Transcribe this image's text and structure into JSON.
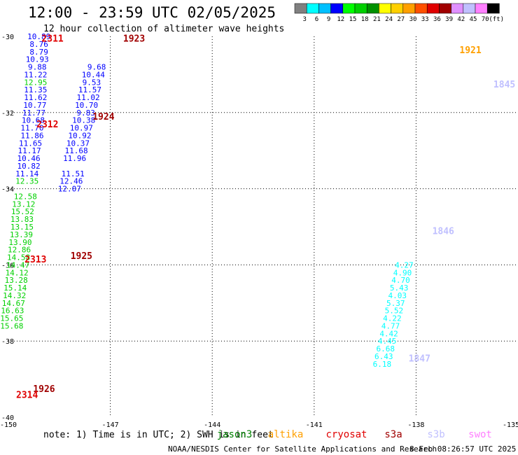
{
  "header": {
    "title": "12:00 - 23:59 UTC 02/05/2025",
    "subtitle": "12 hour collection of altimeter wave heights",
    "unit": "(ft)"
  },
  "legend_scale": {
    "colors": [
      "#808080",
      "#00ffff",
      "#00c0ff",
      "#0000ff",
      "#00ff00",
      "#00d000",
      "#009000",
      "#ffff00",
      "#ffd000",
      "#ffa000",
      "#ff5000",
      "#e00000",
      "#a00000",
      "#e090ff",
      "#c0c0ff",
      "#ff80ff",
      "#000000"
    ],
    "labels": [
      "3",
      "6",
      "9",
      "12",
      "15",
      "18",
      "21",
      "24",
      "27",
      "30",
      "33",
      "36",
      "39",
      "42",
      "45",
      "70"
    ]
  },
  "footer": {
    "note": "note: 1) Time is in UTC; 2) SWH is in feet",
    "credit": "NOAA/NESDIS Center for Satellite Applications and Research",
    "timestamp": "8 Feb 08:26:57 UTC 2025",
    "satellites": [
      {
        "name": "jason3",
        "color": "#008000"
      },
      {
        "name": "altika",
        "color": "#ffa000"
      },
      {
        "name": "cryosat",
        "color": "#e00000"
      },
      {
        "name": "s3a",
        "color": "#a00000"
      },
      {
        "name": "s3b",
        "color": "#c0c0ff"
      },
      {
        "name": "swot",
        "color": "#ff80ff"
      }
    ]
  },
  "chart_data": {
    "type": "scatter",
    "xlim": [
      -150,
      -135
    ],
    "ylim": [
      -40,
      -30
    ],
    "x_ticks": [
      "-150",
      "-147",
      "-144",
      "-141",
      "-138",
      "-135"
    ],
    "y_ticks": [
      "-30",
      "-32",
      "-34",
      "-36",
      "-38",
      "-40"
    ],
    "grid": true,
    "color_scale_ft": [
      3,
      6,
      9,
      12,
      15,
      18,
      21,
      24,
      27,
      30,
      33,
      36,
      39,
      42,
      45,
      70
    ],
    "tracks": [
      {
        "color": "#0000ff",
        "x": [
          -149.1,
          -149.1,
          -149.1,
          -149.15,
          -149.15,
          -149.2,
          -149.2,
          -149.2,
          -149.22,
          -149.25,
          -149.27,
          -149.3,
          -149.3,
          -149.35,
          -149.38,
          -149.4,
          -149.4,
          -149.45
        ],
        "lat": [
          -30,
          -30.2,
          -30.4,
          -30.6,
          -30.8,
          -31.0,
          -31.4,
          -31.6,
          -31.8,
          -32.0,
          -32.2,
          -32.4,
          -32.6,
          -32.8,
          -33.0,
          -33.2,
          -33.4,
          -33.6
        ],
        "values": [
          10.89,
          8.76,
          8.79,
          10.93,
          9.88,
          11.22,
          11.35,
          11.62,
          10.77,
          11.77,
          10.68,
          11.7,
          11.86,
          11.65,
          11.17,
          10.46,
          10.82,
          11.14
        ]
      },
      {
        "color": "#00d000",
        "x": [
          -149.2,
          -149.45,
          -149.5,
          -149.55,
          -149.58,
          -149.6,
          -149.6,
          -149.62,
          -149.65,
          -149.68,
          -149.7,
          -149.72,
          -149.75,
          -149.77,
          -149.8,
          -149.82,
          -149.85,
          -149.88,
          -149.9,
          -149.9
        ],
        "lat": [
          -31.2,
          -33.8,
          -34.2,
          -34.4,
          -34.6,
          -34.8,
          -35.0,
          -35.2,
          -35.4,
          -35.6,
          -35.8,
          -36.0,
          -36.2,
          -36.4,
          -36.6,
          -36.8,
          -37.0,
          -37.2,
          -37.4,
          -37.6
        ],
        "values": [
          12.95,
          12.35,
          12.58,
          13.12,
          15.52,
          13.83,
          13.15,
          13.39,
          13.9,
          12.86,
          14.58,
          14.47,
          14.12,
          13.28,
          15.14,
          14.32,
          14.67,
          16.63,
          15.65,
          15.68
        ]
      },
      {
        "color": "#0000ff",
        "x": [
          -147.4,
          -147.5,
          -147.55,
          -147.6,
          -147.65,
          -147.7,
          -147.72,
          -147.78,
          -147.85,
          -147.9,
          -147.95,
          -148.0,
          -148.05,
          -148.1,
          -148.15,
          -148.2
        ],
        "lat": [
          -30.8,
          -31.0,
          -31.2,
          -31.4,
          -31.6,
          -31.8,
          -32.0,
          -32.2,
          -32.4,
          -32.6,
          -32.8,
          -33.0,
          -33.2,
          -33.6,
          -33.8,
          -34.0
        ],
        "values": [
          9.68,
          10.44,
          9.53,
          11.57,
          11.02,
          10.7,
          9.83,
          10.38,
          10.97,
          10.92,
          10.37,
          11.68,
          11.96,
          11.51,
          12.46,
          12.07
        ]
      },
      {
        "color": "#00ffff",
        "x": [
          -138.35,
          -138.4,
          -138.45,
          -138.5,
          -138.55,
          -138.6,
          -138.65,
          -138.7,
          -138.75,
          -138.8,
          -138.85,
          -138.9,
          -138.95,
          -139.0
        ],
        "lat": [
          -36.0,
          -36.2,
          -36.4,
          -36.6,
          -36.8,
          -37.0,
          -37.2,
          -37.4,
          -37.6,
          -37.8,
          -38.0,
          -38.2,
          -38.4,
          -38.6
        ],
        "values": [
          4.27,
          4.9,
          4.7,
          5.43,
          4.03,
          5.37,
          5.52,
          4.22,
          4.77,
          4.42,
          4.45,
          6.68,
          6.43,
          6.18
        ]
      }
    ],
    "labels": [
      {
        "text": "2311",
        "color": "#e00000",
        "lat": -30.05,
        "lon": -148.7
      },
      {
        "text": "1923",
        "color": "#a00000",
        "lat": -30.05,
        "lon": -146.3
      },
      {
        "text": "1924",
        "color": "#a00000",
        "lat": -32.1,
        "lon": -147.2
      },
      {
        "text": "2312",
        "color": "#e00000",
        "lat": -32.3,
        "lon": -148.85
      },
      {
        "text": "2313",
        "color": "#e00000",
        "lat": -35.85,
        "lon": -149.2
      },
      {
        "text": "1925",
        "color": "#a00000",
        "lat": -35.75,
        "lon": -147.85
      },
      {
        "text": "1926",
        "color": "#a00000",
        "lat": -39.25,
        "lon": -148.95
      },
      {
        "text": "2314",
        "color": "#e00000",
        "lat": -39.4,
        "lon": -149.45
      },
      {
        "text": "1921",
        "color": "#ffa000",
        "lat": -30.35,
        "lon": -136.4
      },
      {
        "text": "1845",
        "color": "#c0c0ff",
        "lat": -31.25,
        "lon": -135.4
      },
      {
        "text": "1846",
        "color": "#c0c0ff",
        "lat": -35.1,
        "lon": -137.2
      },
      {
        "text": "1847",
        "color": "#c0c0ff",
        "lat": -38.45,
        "lon": -137.9
      }
    ]
  }
}
